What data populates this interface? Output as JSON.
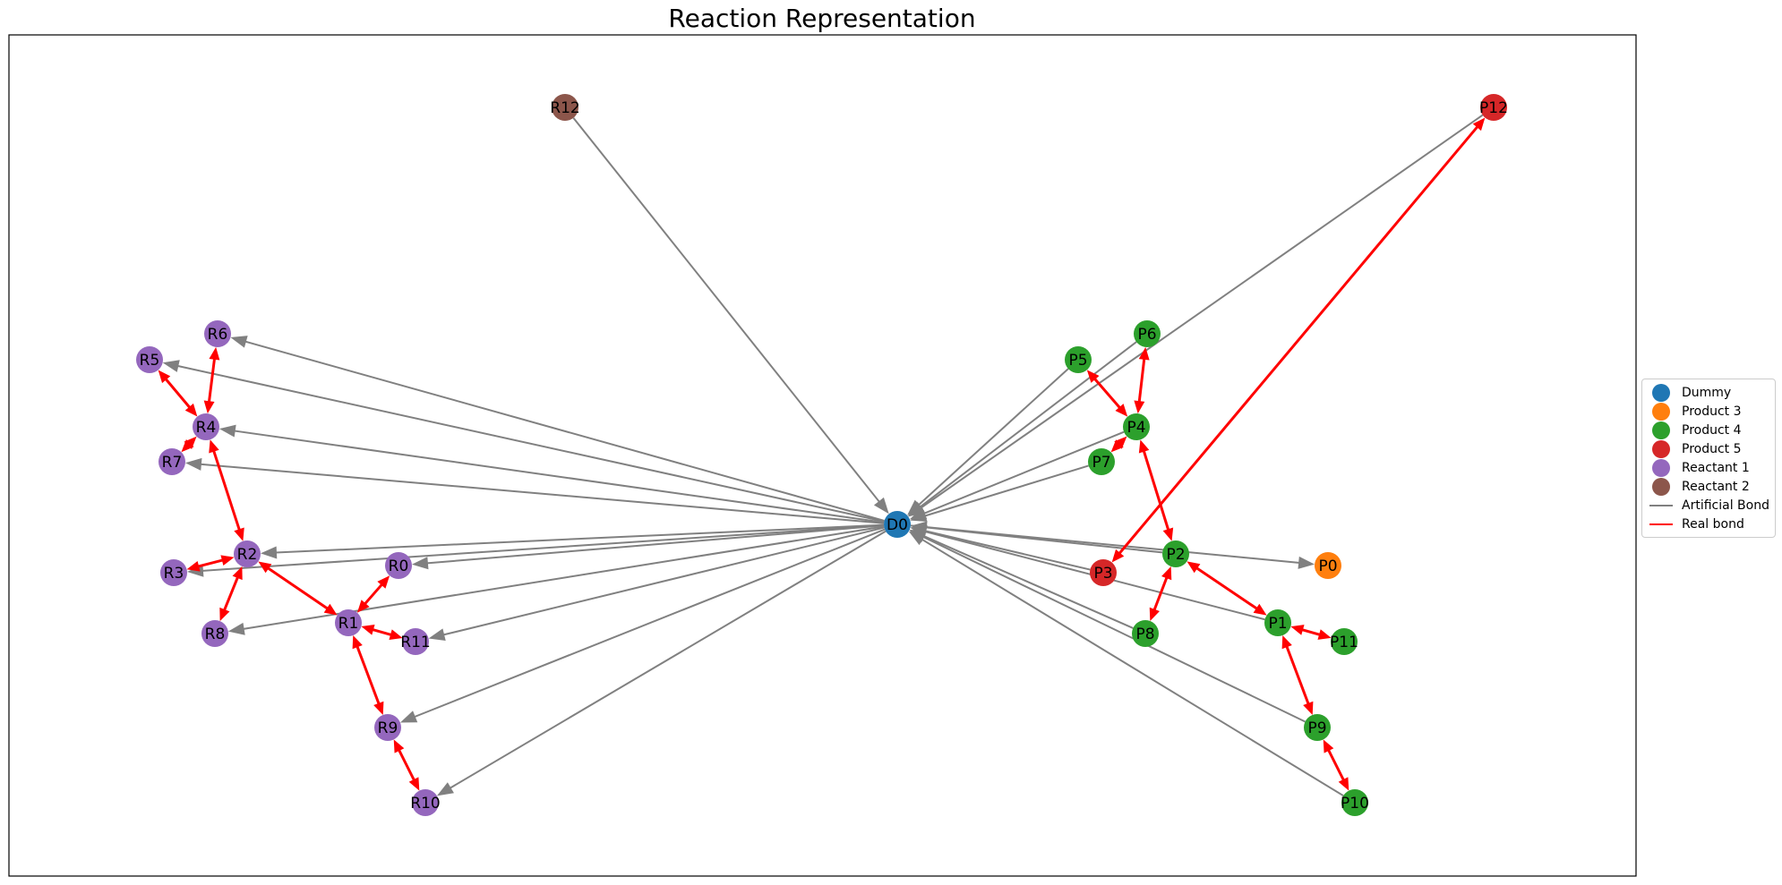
{
  "title": "Reaction Representation",
  "colors": {
    "artificial": "#808080",
    "real": "#ff0000",
    "groups": {
      "Dummy": "#1f77b4",
      "Product 3": "#ff7f0e",
      "Product 4": "#2ca02c",
      "Product 5": "#d62728",
      "Reactant 1": "#9467bd",
      "Reactant 2": "#8c564b"
    }
  },
  "legend": [
    {
      "label": "Dummy",
      "kind": "dot",
      "color": "#1f77b4"
    },
    {
      "label": "Product 3",
      "kind": "dot",
      "color": "#ff7f0e"
    },
    {
      "label": "Product 4",
      "kind": "dot",
      "color": "#2ca02c"
    },
    {
      "label": "Product 5",
      "kind": "dot",
      "color": "#d62728"
    },
    {
      "label": "Reactant 1",
      "kind": "dot",
      "color": "#9467bd"
    },
    {
      "label": "Reactant 2",
      "kind": "dot",
      "color": "#8c564b"
    },
    {
      "label": "Artificial Bond",
      "kind": "line",
      "color": "#808080"
    },
    {
      "label": "Real bond",
      "kind": "line",
      "color": "#ff0000"
    }
  ],
  "nodes": [
    {
      "id": "D0",
      "group": "Dummy"
    },
    {
      "id": "R12",
      "group": "Reactant 2"
    },
    {
      "id": "R6",
      "group": "Reactant 1"
    },
    {
      "id": "R5",
      "group": "Reactant 1"
    },
    {
      "id": "R4",
      "group": "Reactant 1"
    },
    {
      "id": "R7",
      "group": "Reactant 1"
    },
    {
      "id": "R2",
      "group": "Reactant 1"
    },
    {
      "id": "R3",
      "group": "Reactant 1"
    },
    {
      "id": "R0",
      "group": "Reactant 1"
    },
    {
      "id": "R1",
      "group": "Reactant 1"
    },
    {
      "id": "R8",
      "group": "Reactant 1"
    },
    {
      "id": "R11",
      "group": "Reactant 1"
    },
    {
      "id": "R9",
      "group": "Reactant 1"
    },
    {
      "id": "R10",
      "group": "Reactant 1"
    },
    {
      "id": "P12",
      "group": "Product 5"
    },
    {
      "id": "P3",
      "group": "Product 5"
    },
    {
      "id": "P0",
      "group": "Product 3"
    },
    {
      "id": "P5",
      "group": "Product 4"
    },
    {
      "id": "P6",
      "group": "Product 4"
    },
    {
      "id": "P4",
      "group": "Product 4"
    },
    {
      "id": "P7",
      "group": "Product 4"
    },
    {
      "id": "P2",
      "group": "Product 4"
    },
    {
      "id": "P8",
      "group": "Product 4"
    },
    {
      "id": "P1",
      "group": "Product 4"
    },
    {
      "id": "P11",
      "group": "Product 4"
    },
    {
      "id": "P9",
      "group": "Product 4"
    },
    {
      "id": "P10",
      "group": "Product 4"
    }
  ],
  "artificial_bonds": [
    [
      "R12",
      "D0"
    ],
    [
      "D0",
      "R6"
    ],
    [
      "D0",
      "R5"
    ],
    [
      "D0",
      "R4"
    ],
    [
      "D0",
      "R7"
    ],
    [
      "D0",
      "R2"
    ],
    [
      "D0",
      "R3"
    ],
    [
      "D0",
      "R0"
    ],
    [
      "D0",
      "R8"
    ],
    [
      "D0",
      "R11"
    ],
    [
      "D0",
      "R9"
    ],
    [
      "D0",
      "R10"
    ],
    [
      "P12",
      "D0"
    ],
    [
      "P6",
      "D0"
    ],
    [
      "P5",
      "D0"
    ],
    [
      "P4",
      "D0"
    ],
    [
      "P7",
      "D0"
    ],
    [
      "P2",
      "D0"
    ],
    [
      "P3",
      "D0"
    ],
    [
      "P8",
      "D0"
    ],
    [
      "P1",
      "D0"
    ],
    [
      "P9",
      "D0"
    ],
    [
      "P10",
      "D0"
    ],
    [
      "D0",
      "P0"
    ]
  ],
  "real_bonds": [
    [
      "R5",
      "R4"
    ],
    [
      "R6",
      "R4"
    ],
    [
      "R7",
      "R4"
    ],
    [
      "R4",
      "R2"
    ],
    [
      "R2",
      "R3"
    ],
    [
      "R2",
      "R8"
    ],
    [
      "R2",
      "R1"
    ],
    [
      "R0",
      "R1"
    ],
    [
      "R1",
      "R11"
    ],
    [
      "R1",
      "R9"
    ],
    [
      "R9",
      "R10"
    ],
    [
      "P5",
      "P4"
    ],
    [
      "P6",
      "P4"
    ],
    [
      "P7",
      "P4"
    ],
    [
      "P4",
      "P2"
    ],
    [
      "P2",
      "P8"
    ],
    [
      "P2",
      "P1"
    ],
    [
      "P1",
      "P11"
    ],
    [
      "P1",
      "P9"
    ],
    [
      "P9",
      "P10"
    ],
    [
      "P12",
      "P3"
    ]
  ]
}
